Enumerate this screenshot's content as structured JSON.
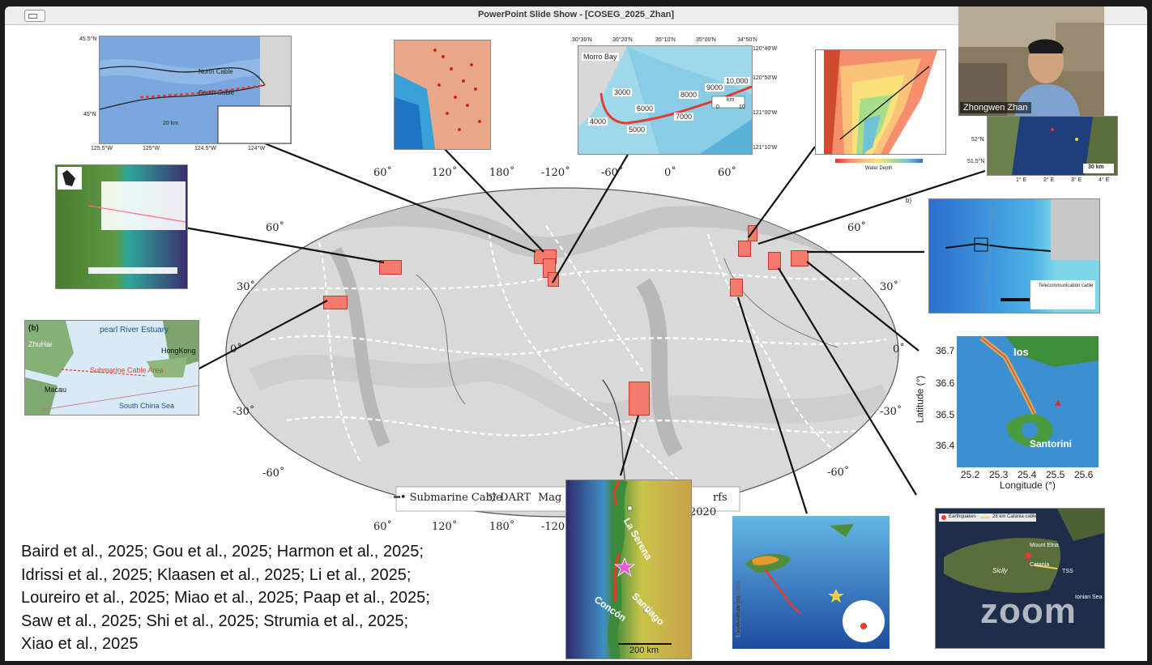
{
  "window": {
    "title": "PowerPoint Slide Show - [COSEG_2025_Zhan]"
  },
  "map": {
    "top_lon_labels": [
      "60˚",
      "120˚",
      "180˚",
      "-120˚",
      "-60˚",
      "0˚",
      "60˚"
    ],
    "bottom_lon_labels": [
      "60˚",
      "120˚",
      "180˚",
      "-120˚"
    ],
    "bottom_right_label": "-60˚",
    "lat_left": [
      "60˚",
      "30˚",
      "0˚",
      "-30˚",
      "-60˚"
    ],
    "lat_right": [
      "60˚",
      "30˚",
      "0˚",
      "-30˚"
    ],
    "legend": {
      "cable": "Submarine Cable",
      "dart": "DART",
      "mag": "Mag",
      "year": "2020",
      "rfs": "rfs"
    }
  },
  "insets": {
    "oregon": {
      "lat1": "45.5°N",
      "lat2": "45°N",
      "lons": [
        "125.5°W",
        "125°W",
        "124.5°W",
        "124°W"
      ],
      "north": "North Cable",
      "south": "South Cable",
      "scale": "20 km"
    },
    "monterey": {
      "lons": [
        "30°30'N",
        "30°20'N",
        "35°10'N",
        "35°00'N",
        "34°50'N"
      ],
      "lats": [
        "120°40'W",
        "120°50'W",
        "121°00'W",
        "121°10'W"
      ],
      "place": "Morro Bay",
      "nums": [
        "3000",
        "4000",
        "5000",
        "6000",
        "7000",
        "8000",
        "9000",
        "10,000"
      ],
      "scale": "km",
      "s0": "0",
      "s10": "10"
    },
    "pearl": {
      "b": "(b)",
      "estuary": "pearl River Estuary",
      "zhuhai": "ZhuHai",
      "hongkong": "HongKong",
      "cable": "Submarine Cable Area",
      "macau": "Macau",
      "sea": "South China Sea"
    },
    "northsea": {
      "lat1": "52°N",
      "lat2": "51.5°N",
      "lons": [
        "1° E",
        "2° E",
        "3° E",
        "4° E"
      ],
      "scale": "30 km"
    },
    "iceland": {
      "caption": "Water Depth"
    },
    "blackbox": {
      "label": "b)",
      "legend1": "Telecommunication cable"
    },
    "santorini": {
      "yticks": [
        "36.7",
        "36.6",
        "36.5",
        "36.4"
      ],
      "xticks": [
        "25.2",
        "25.3",
        "25.4",
        "25.5",
        "25.6"
      ],
      "ylabel": "Latitude (°)",
      "xlabel": "Longitude (°)",
      "ios": "Ios",
      "santorini": "Santorini"
    },
    "chile": {
      "laserena": "La Serena",
      "santiago": "Santiago",
      "concon": "Concón",
      "scale": "200 km"
    },
    "azores": {
      "label": "Depth/Altitude (m)"
    },
    "sicily": {
      "legend1": "Earthquakes",
      "legend2": "28 km Catania cable",
      "etna": "Mount Etna",
      "catania": "Catania",
      "tss": "TSS",
      "sicily": "Sicily",
      "ionian": "Ionian Sea"
    }
  },
  "references": [
    "Baird et al., 2025; Gou et al., 2025; Harmon et al., 2025;",
    "Idrissi et al., 2025; Klaasen et al., 2025; Li et al., 2025;",
    "Loureiro et al., 2025; Miao et al., 2025; Paap et al., 2025;",
    "Saw et al., 2025; Shi et al., 2025; Strumia et al., 2025;",
    "Xiao et al., 2025"
  ],
  "video": {
    "name": "Zhongwen Zhan"
  },
  "watermark": "zoom",
  "colors": {
    "accent_red": "#f47b6d",
    "cable_red": "#e63b2e"
  }
}
